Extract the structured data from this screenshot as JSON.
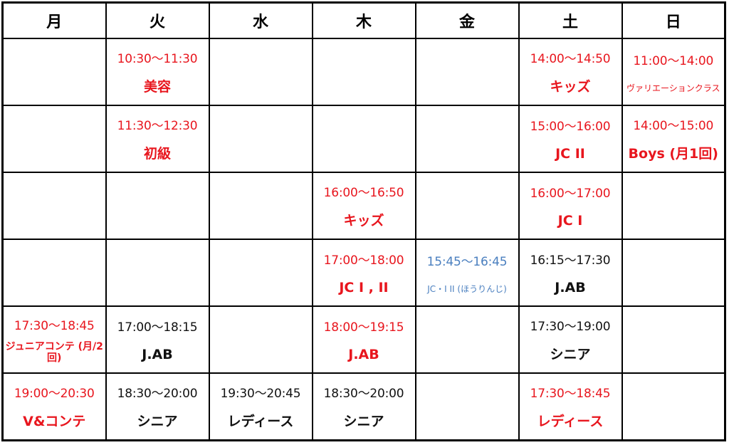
{
  "days": [
    "月",
    "火",
    "水",
    "木",
    "金",
    "土",
    "日"
  ],
  "colors": {
    "red": "#e8161e",
    "black": "#111111",
    "blue": "#4a7fbf"
  },
  "rows": [
    [
      null,
      {
        "time": "10:30〜11:30",
        "class": "美容",
        "color": "red"
      },
      null,
      null,
      null,
      {
        "time": "14:00〜14:50",
        "class": "キッズ",
        "color": "red"
      },
      {
        "time": "11:00〜14:00",
        "class": "ヴァリエーションクラス",
        "color": "red",
        "size": "small"
      }
    ],
    [
      null,
      {
        "time": "11:30〜12:30",
        "class": "初級",
        "color": "red"
      },
      null,
      null,
      null,
      {
        "time": "15:00〜16:00",
        "class": "JC II",
        "color": "red"
      },
      {
        "time": "14:00〜15:00",
        "class": "Boys (月1回)",
        "color": "red"
      }
    ],
    [
      null,
      null,
      null,
      {
        "time": "16:00〜16:50",
        "class": "キッズ",
        "color": "red"
      },
      null,
      {
        "time": "16:00〜17:00",
        "class": "JC I",
        "color": "red"
      },
      null
    ],
    [
      null,
      null,
      null,
      {
        "time": "17:00〜18:00",
        "class": "JC I , II",
        "color": "red"
      },
      {
        "time": "15:45〜16:45",
        "class": "JC・I II (ほうりんじ)",
        "color": "blue",
        "size": "small"
      },
      {
        "time": "16:15〜17:30",
        "class": "J.AB",
        "color": "black"
      },
      null
    ],
    [
      {
        "time": "17:30〜18:45",
        "class": "ジュニアコンテ (月/2回)",
        "color": "red",
        "size": "twoline"
      },
      {
        "time": "17:00〜18:15",
        "class": "J.AB",
        "color": "black"
      },
      null,
      {
        "time": "18:00〜19:15",
        "class": "J.AB",
        "color": "red"
      },
      null,
      {
        "time": "17:30〜19:00",
        "class": "シニア",
        "color": "black"
      },
      null
    ],
    [
      {
        "time": "19:00〜20:30",
        "class": "V&コンテ",
        "color": "red"
      },
      {
        "time": "18:30〜20:00",
        "class": "シニア",
        "color": "black"
      },
      {
        "time": "19:30〜20:45",
        "class": "レディース",
        "color": "black"
      },
      {
        "time": "18:30〜20:00",
        "class": "シニア",
        "color": "black"
      },
      null,
      {
        "time": "17:30〜18:45",
        "class": "レディース",
        "color": "red"
      },
      null
    ]
  ]
}
